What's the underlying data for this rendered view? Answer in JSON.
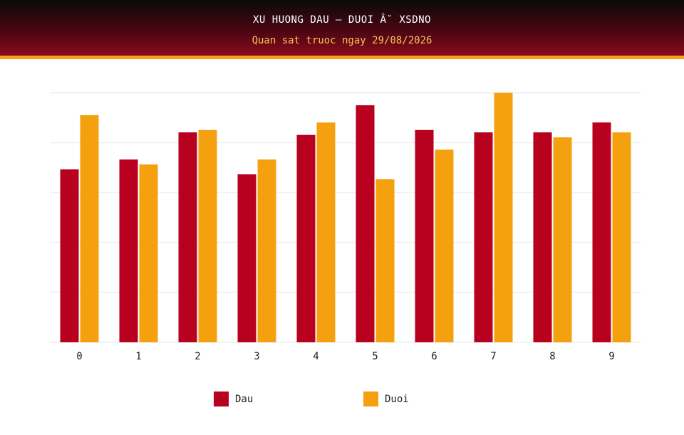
{
  "header": {
    "title": "XU HUONG DAU – DUOI Â˘ XSDNO",
    "subtitle": "Quan sat truoc ngay 29/08/2026"
  },
  "colors": {
    "dau": "#b8001f",
    "duoi": "#f5a10f",
    "grid": "#e6e6e6",
    "header_stripe": "#f5a31b"
  },
  "chart_data": {
    "type": "bar",
    "categories": [
      "0",
      "1",
      "2",
      "3",
      "4",
      "5",
      "6",
      "7",
      "8",
      "9"
    ],
    "series": [
      {
        "name": "Dau",
        "values": [
          35,
          37,
          42.5,
          34,
          42,
          48,
          43,
          42.5,
          42.5,
          44.5
        ]
      },
      {
        "name": "Duoi",
        "values": [
          46,
          36,
          43,
          37,
          44.5,
          33,
          39,
          50.5,
          41.5,
          42.5
        ]
      }
    ],
    "ylim": [
      0,
      50.5
    ],
    "grid": true,
    "y_tick_labels_shown": false,
    "legend_position": "bottom"
  },
  "legend": {
    "dau_label": "Dau",
    "duoi_label": "Duoi"
  }
}
